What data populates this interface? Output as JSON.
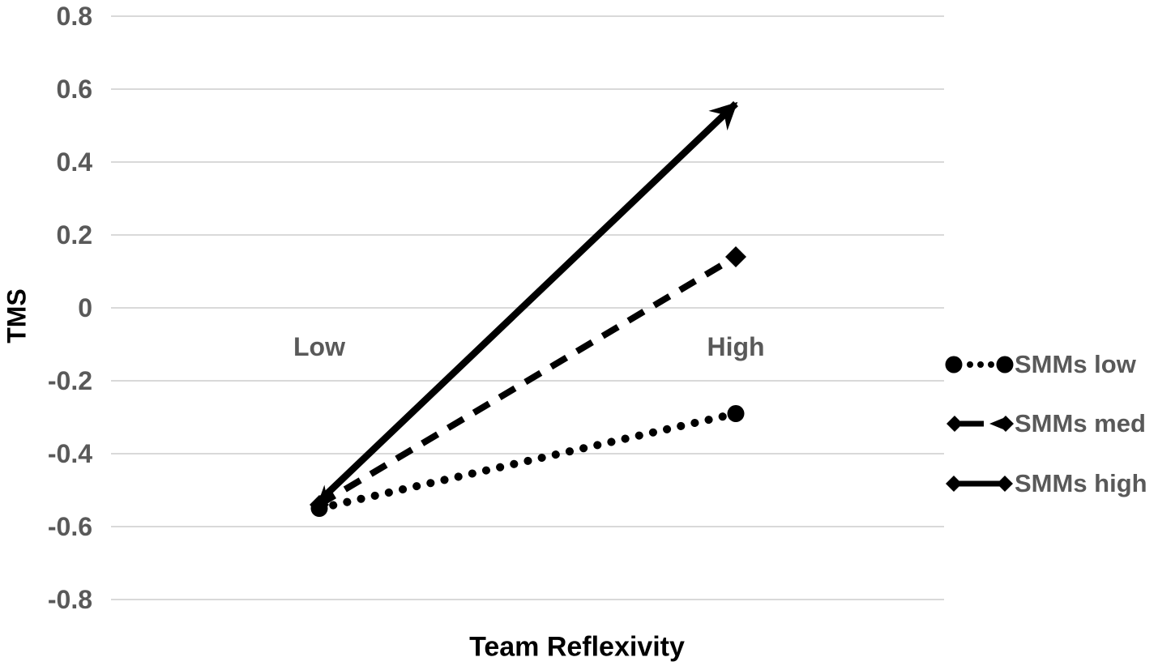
{
  "chart_data": {
    "type": "line",
    "title": "",
    "xlabel": "Team Reflexivity",
    "ylabel": "TMS",
    "categories": [
      "Low",
      "High"
    ],
    "series": [
      {
        "name": "SMMs low",
        "line_style": "dotted",
        "marker": "circle",
        "values": [
          -0.55,
          -0.29
        ]
      },
      {
        "name": "SMMs med",
        "line_style": "dashed",
        "marker": "diamond",
        "values": [
          -0.54,
          0.14
        ]
      },
      {
        "name": "SMMs high",
        "line_style": "solid",
        "marker": "arrow",
        "values": [
          -0.53,
          0.56
        ]
      }
    ],
    "ylim": [
      -0.8,
      0.8
    ],
    "yticks": [
      0.8,
      0.6,
      0.4,
      0.2,
      0,
      -0.2,
      -0.4,
      -0.6,
      -0.8
    ],
    "ytick_labels": [
      "0.8",
      "0.6",
      "0.4",
      "0.2",
      "0",
      "-0.2",
      "-0.4",
      "-0.6",
      "-0.8"
    ],
    "grid": true,
    "legend_position": "right",
    "colors": {
      "series": "#000000",
      "tick_label": "#595959",
      "category_label": "#595959",
      "legend_label": "#595959",
      "axis_title": "#000000",
      "gridline": "#d9d9d9",
      "background": "#ffffff"
    }
  }
}
